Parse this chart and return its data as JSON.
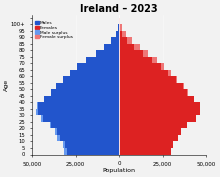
{
  "title": "Ireland – 2023",
  "xlabel": "Population",
  "ylabel": "Age",
  "background_color": "#f2f2f2",
  "male_color": "#2255cc",
  "female_color": "#dd2222",
  "male_surplus_color": "#6699ee",
  "female_surplus_color": "#ee7777",
  "xlim": [
    -50000,
    50000
  ],
  "xticks": [
    -50000,
    -25000,
    0,
    25000,
    50000
  ],
  "xticklabels": [
    "50,000",
    "25,000",
    "0",
    "25,000",
    "50,000"
  ],
  "age_labels": [
    "0",
    "5",
    "10",
    "15",
    "20",
    "25",
    "30",
    "35",
    "40",
    "45",
    "50",
    "55",
    "60",
    "65",
    "70",
    "75",
    "80",
    "85",
    "90",
    "95",
    "100+"
  ],
  "males": [
    31500,
    32500,
    35500,
    37000,
    40000,
    45000,
    47500,
    47000,
    43000,
    39000,
    36500,
    32500,
    28000,
    24000,
    19000,
    13500,
    8500,
    4500,
    1800,
    600,
    150
  ],
  "females": [
    30000,
    31000,
    34000,
    35500,
    39000,
    44000,
    46500,
    46500,
    43000,
    39500,
    37000,
    33500,
    29500,
    26000,
    21500,
    16500,
    12000,
    7500,
    3800,
    1600,
    550
  ]
}
